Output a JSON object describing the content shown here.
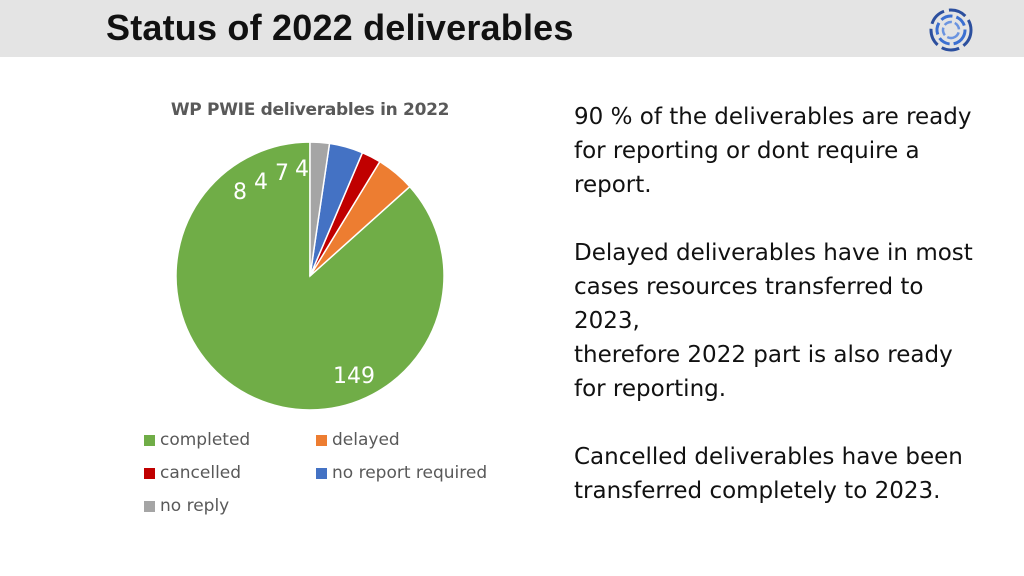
{
  "header": {
    "title": "Status of 2022 deliverables",
    "logo_icon": "circular-arrows-logo-icon",
    "background": "#e4e4e4"
  },
  "chart_data": {
    "type": "pie",
    "title": "WP PWIE deliverables in 2022",
    "categories": [
      "completed",
      "delayed",
      "cancelled",
      "no report required",
      "no reply"
    ],
    "values": [
      149,
      8,
      4,
      7,
      4
    ],
    "colors": [
      "#70ad47",
      "#ed7d31",
      "#c00000",
      "#4472c4",
      "#a5a5a5"
    ],
    "data_label_colors": [
      "#ffffff",
      "#ffffff",
      "#ffffff",
      "#ffffff",
      "#ffffff"
    ],
    "start_angle_deg": 0,
    "direction": "counterclockwise",
    "legend_position": "bottom"
  },
  "legend": {
    "items": [
      {
        "label": "completed",
        "color": "#70ad47"
      },
      {
        "label": "delayed",
        "color": "#ed7d31"
      },
      {
        "label": "cancelled",
        "color": "#c00000"
      },
      {
        "label": "no report required",
        "color": "#4472c4"
      },
      {
        "label": "no reply",
        "color": "#a5a5a5"
      }
    ]
  },
  "notes": {
    "paragraph1": [
      "90 % of the deliverables are ready",
      "for reporting or dont require a",
      "report."
    ],
    "paragraph2": [
      "Delayed deliverables have in most",
      "cases resources transferred to",
      "2023,",
      "therefore 2022 part is also ready",
      "for reporting."
    ],
    "paragraph3": [
      "Cancelled deliverables have been",
      "transferred completely to 2023."
    ]
  }
}
